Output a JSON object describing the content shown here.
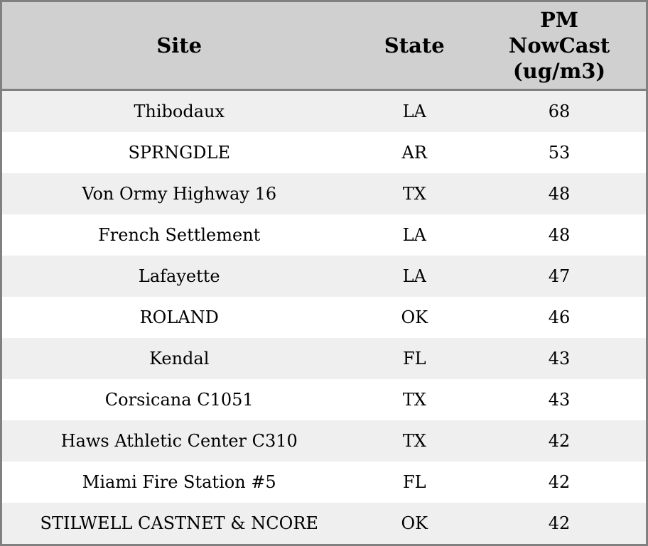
{
  "chart_data": {
    "type": "table",
    "title": "",
    "columns": [
      "Site",
      "State",
      "PM NowCast (ug/m3)"
    ],
    "rows": [
      {
        "site": "Thibodaux",
        "state": "LA",
        "value": 68
      },
      {
        "site": "SPRNGDLE",
        "state": "AR",
        "value": 53
      },
      {
        "site": "Von Ormy Highway 16",
        "state": "TX",
        "value": 48
      },
      {
        "site": "French Settlement",
        "state": "LA",
        "value": 48
      },
      {
        "site": "Lafayette",
        "state": "LA",
        "value": 47
      },
      {
        "site": "ROLAND",
        "state": "OK",
        "value": 46
      },
      {
        "site": "Kendal",
        "state": "FL",
        "value": 43
      },
      {
        "site": "Corsicana C1051",
        "state": "TX",
        "value": 43
      },
      {
        "site": "Haws Athletic Center C310",
        "state": "TX",
        "value": 42
      },
      {
        "site": "Miami Fire Station #5",
        "state": "FL",
        "value": 42
      },
      {
        "site": "STILWELL CASTNET & NCORE",
        "state": "OK",
        "value": 42
      }
    ]
  },
  "colors": {
    "header_bg": "#d0d0d0",
    "row_stripe_bg": "#efefef",
    "row_bg": "#ffffff",
    "border": "#808080",
    "text": "#000000"
  }
}
